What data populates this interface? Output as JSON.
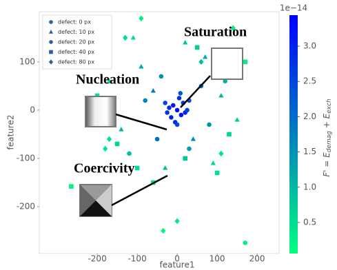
{
  "chart_data": {
    "type": "scatter",
    "x_label": "feature1",
    "y_label": "feature2",
    "xlim": [
      -345,
      255
    ],
    "ylim": [
      -297,
      204
    ],
    "xticks": [
      -200,
      -100,
      0,
      100,
      200
    ],
    "yticks": [
      -200,
      -100,
      0,
      100
    ],
    "legend_position": "upper left",
    "legend_color": "#2b5f97",
    "colormap": [
      "#00ff80",
      "#0000ff"
    ],
    "clim": [
      0.06,
      3.44
    ],
    "colorbar_ticks": [
      0.5,
      {
        "value": 1,
        "label": "1.0"
      },
      1.5,
      {
        "value": 2,
        "label": "2.0"
      },
      2.5,
      {
        "value": 3,
        "label": "3.0"
      }
    ],
    "colorbar_offset": "1e−14",
    "colorbar_label": {
      "main": "F' = E",
      "sub1": "demag",
      "mid": " + E",
      "sub2": "exch"
    },
    "annotations": [
      "Saturation",
      "Nucleation",
      "Coercivity"
    ],
    "series": [
      {
        "name": "defect: 0 px",
        "marker": "circle",
        "x": [
          0,
          -10,
          10,
          -20,
          20,
          5,
          -5,
          15,
          -15,
          25,
          -25,
          0,
          30,
          -30,
          8
        ],
        "values": [
          0,
          10,
          -10,
          5,
          -5,
          25,
          -25,
          15,
          -15,
          0,
          -5,
          -30,
          20,
          15,
          35
        ],
        "c": [
          3.3,
          3.1,
          3.2,
          2.9,
          3.0,
          2.8,
          2.9,
          2.7,
          3.0,
          2.6,
          2.8,
          2.5,
          2.4,
          2.5,
          2.3
        ]
      },
      {
        "name": "defect: 10 px",
        "marker": "triangle",
        "x": [
          -60,
          40,
          -90,
          110,
          -140,
          70,
          -30,
          150,
          -110,
          90,
          20,
          -170
        ],
        "values": [
          40,
          -60,
          90,
          30,
          -40,
          110,
          -120,
          -20,
          150,
          -110,
          140,
          60
        ],
        "c": [
          1.8,
          1.6,
          1.2,
          1.0,
          1.0,
          1.1,
          0.9,
          0.7,
          0.5,
          0.6,
          0.8,
          0.4
        ]
      },
      {
        "name": "defect: 20 px",
        "marker": "circle",
        "x": [
          -50,
          60,
          -80,
          80,
          30,
          -40,
          120,
          -120,
          170
        ],
        "values": [
          -60,
          50,
          20,
          -30,
          -80,
          70,
          60,
          -90,
          -275
        ],
        "c": [
          2.0,
          1.9,
          1.7,
          1.5,
          1.4,
          1.6,
          1.0,
          0.9,
          0.2
        ]
      },
      {
        "name": "defect: 40 px",
        "marker": "square",
        "x": [
          -265,
          -100,
          130,
          -200,
          50,
          -60,
          170,
          -150,
          100,
          20
        ],
        "values": [
          -158,
          -120,
          -50,
          30,
          130,
          -150,
          100,
          -70,
          -130,
          -100
        ],
        "c": [
          0.2,
          0.5,
          0.6,
          0.4,
          0.7,
          0.5,
          0.3,
          0.6,
          0.5,
          0.8
        ]
      },
      {
        "name": "defect: 80 px",
        "marker": "diamond",
        "x": [
          -90,
          110,
          -130,
          -35,
          60,
          140,
          -170,
          0,
          -180
        ],
        "values": [
          190,
          -90,
          150,
          -250,
          100,
          170,
          -60,
          -230,
          -80
        ],
        "c": [
          0.3,
          0.4,
          0.5,
          0.2,
          0.9,
          0.3,
          0.4,
          0.3,
          0.4
        ]
      }
    ]
  }
}
